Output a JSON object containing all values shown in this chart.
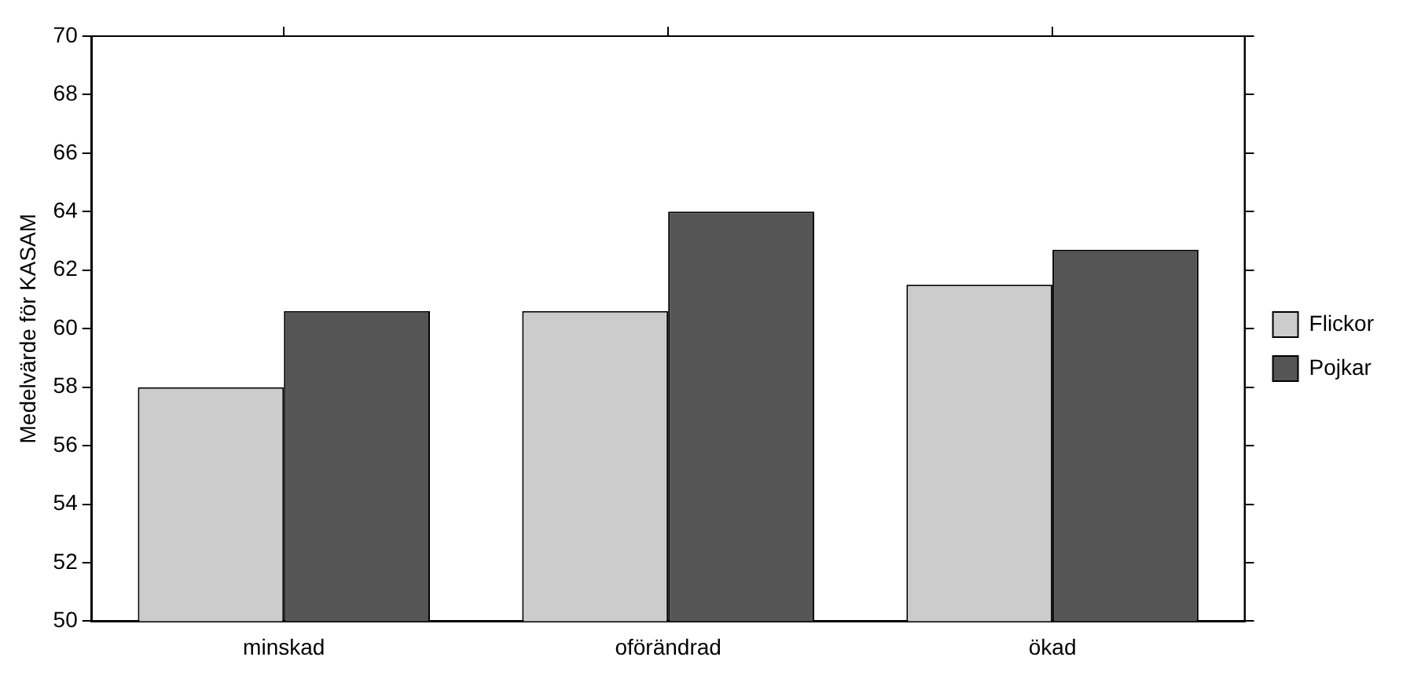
{
  "chart_data": {
    "type": "bar",
    "ylabel": "Medelvärde för KASAM",
    "categories": [
      "minskad",
      "oförändrad",
      "ökad"
    ],
    "series": [
      {
        "name": "Flickor",
        "color": "#cccccc",
        "values": [
          58.0,
          60.6,
          61.5
        ]
      },
      {
        "name": "Pojkar",
        "color": "#555555",
        "values": [
          60.6,
          64.0,
          62.7
        ]
      }
    ],
    "ylim": [
      50,
      70
    ],
    "yticks": [
      50,
      52,
      54,
      56,
      58,
      60,
      62,
      64,
      66,
      68,
      70
    ],
    "grid": false,
    "legend": "right"
  }
}
